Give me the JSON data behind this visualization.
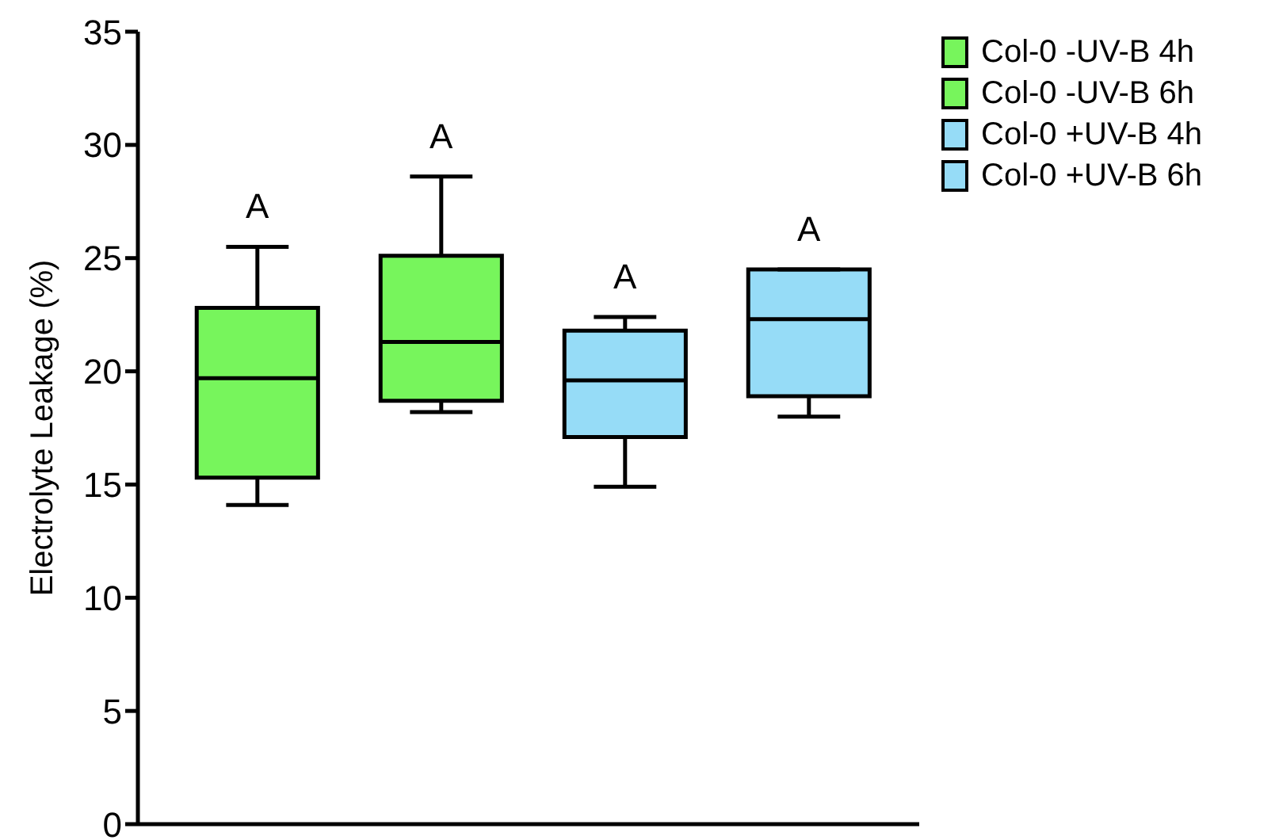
{
  "chart_data": {
    "type": "box",
    "ylabel": "Electrolyte Leakage (%)",
    "categories": [
      null,
      null,
      null,
      null
    ],
    "ylim": [
      0,
      35
    ],
    "yticks": [
      0,
      5,
      10,
      15,
      20,
      25,
      30,
      35
    ],
    "tick_labels": "y",
    "legend": "top right",
    "series": [
      {
        "name": "Col-0 -UV-B 4h",
        "color": "#77f55c",
        "boxes": [
          {
            "low": 14.1,
            "q1": 15.3,
            "median": 19.7,
            "q3": 22.8,
            "high": 25.5
          },
          null,
          null,
          null
        ]
      },
      {
        "name": "Col-0 -UV-B 6h",
        "color": "#77f55c",
        "boxes": [
          null,
          {
            "low": 18.2,
            "q1": 18.7,
            "median": 21.3,
            "q3": 25.1,
            "high": 28.6
          },
          null,
          null
        ]
      },
      {
        "name": "Col-0 +UV-B 4h",
        "color": "#96dcf7",
        "boxes": [
          null,
          null,
          {
            "low": 14.9,
            "q1": 17.1,
            "median": 19.6,
            "q3": 21.8,
            "high": 22.4
          },
          null
        ]
      },
      {
        "name": "Col-0 +UV-B 6h",
        "color": "#96dcf7",
        "boxes": [
          null,
          null,
          null,
          {
            "low": 18.0,
            "q1": 18.9,
            "median": 22.3,
            "q3": 24.5,
            "high": 24.5
          }
        ]
      }
    ],
    "annotations": [
      "A",
      "A",
      "A",
      "A"
    ]
  }
}
